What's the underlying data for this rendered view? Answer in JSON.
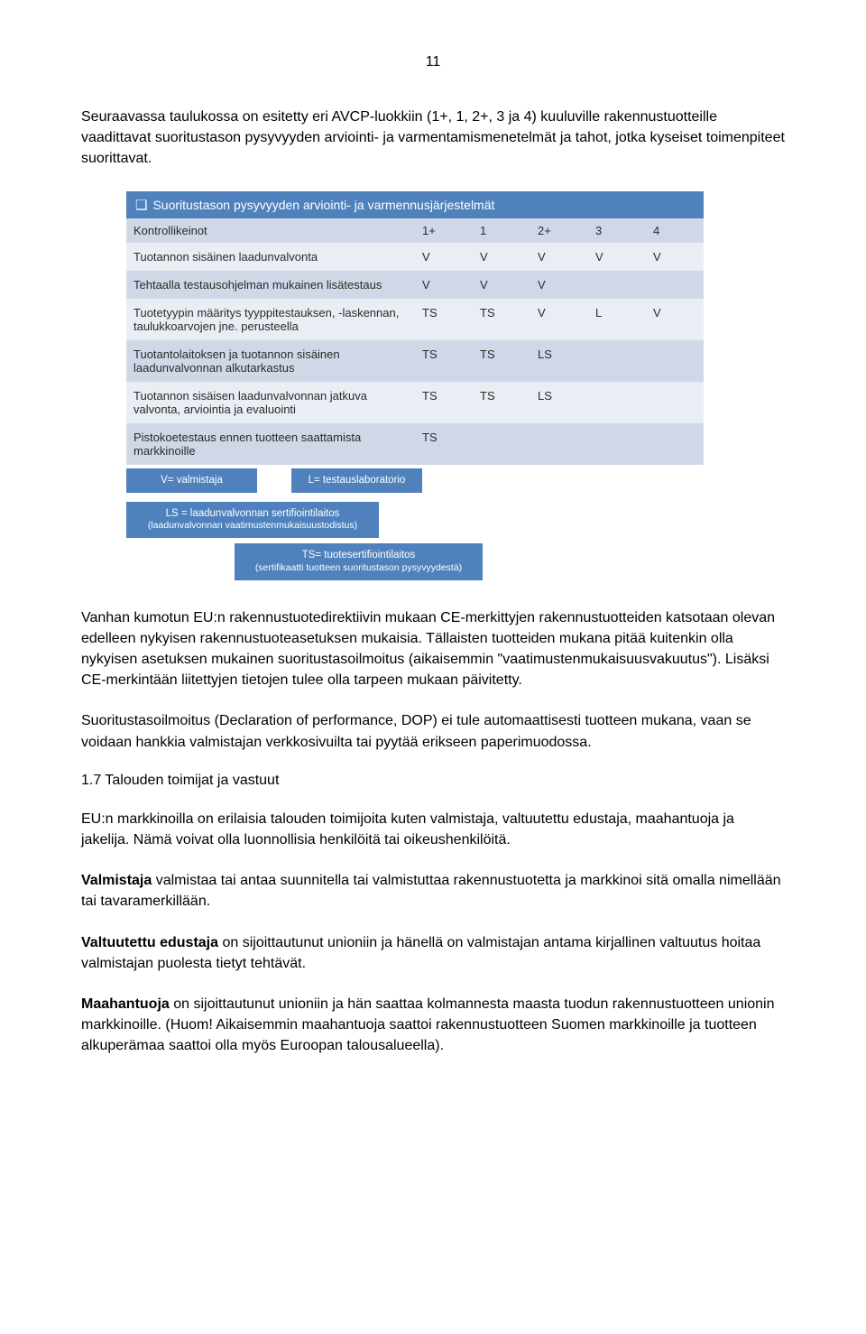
{
  "page_number": "11",
  "paragraphs": {
    "intro": "Seuraavassa taulukossa on esitetty eri AVCP-luokkiin (1+, 1, 2+, 3 ja 4) kuuluville rakennustuotteille vaadittavat suoritustason pysyvyyden arviointi- ja varmentamismenetelmät ja tahot, jotka kyseiset toimenpiteet suorittavat.",
    "p2": "Vanhan kumotun EU:n rakennustuotedirektiivin mukaan CE-merkittyjen rakennustuotteiden katsotaan olevan edelleen nykyisen rakennustuoteasetuksen mukaisia. Tällaisten tuotteiden mukana pitää kuitenkin olla nykyisen asetuksen mukainen suoritustasoilmoitus (aikaisemmin \"vaatimustenmukaisuusvakuutus\"). Lisäksi CE-merkintään liitettyjen tietojen tulee olla tarpeen mukaan päivitetty.",
    "p3": "Suoritustasoilmoitus (Declaration of performance, DOP) ei tule automaattisesti tuotteen mukana, vaan se voidaan hankkia valmistajan verkkosivuilta tai pyytää erikseen paperimuodossa.",
    "heading17": "1.7 Talouden toimijat ja vastuut",
    "p4": "EU:n markkinoilla on erilaisia talouden toimijoita kuten valmistaja, valtuutettu edustaja, maahantuoja ja jakelija. Nämä voivat olla luonnollisia henkilöitä tai oikeushenkilöitä.",
    "p5a": "Valmistaja",
    "p5b": " valmistaa tai antaa suunnitella tai valmistuttaa rakennustuotetta ja markkinoi sitä omalla nimellään tai tavaramerkillään.",
    "p6a": "Valtuutettu edustaja",
    "p6b": " on sijoittautunut unioniin ja hänellä on valmistajan antama kirjallinen valtuutus hoitaa valmistajan puolesta tietyt tehtävät.",
    "p7a": "Maahantuoja",
    "p7b": " on sijoittautunut unioniin ja hän saattaa kolmannesta maasta tuodun rakennustuotteen unionin markkinoille. (Huom! Aikaisemmin maahantuoja saattoi rakennustuotteen Suomen markkinoille ja tuotteen alkuperämaa saattoi olla myös Euroopan talousalueella)."
  },
  "table": {
    "title": "Suoritustason pysyvyyden arviointi- ja varmennusjärjestelmät",
    "header": [
      "Kontrollikeinot",
      "1+",
      "1",
      "2+",
      "3",
      "4"
    ],
    "rows": [
      {
        "label": "Tuotannon sisäinen laadunvalvonta",
        "cells": [
          "V",
          "V",
          "V",
          "V",
          "V"
        ]
      },
      {
        "label": "Tehtaalla testausohjelman mukainen lisätestaus",
        "cells": [
          "V",
          "V",
          "V",
          "",
          ""
        ]
      },
      {
        "label": "Tuotetyypin määritys tyyppitestauksen, -laskennan, taulukkoarvojen jne. perusteella",
        "cells": [
          "TS",
          "TS",
          "V",
          "L",
          "V"
        ]
      },
      {
        "label": "Tuotantolaitoksen ja tuotannon sisäinen laadunvalvonnan alkutarkastus",
        "cells": [
          "TS",
          "TS",
          "LS",
          "",
          ""
        ]
      },
      {
        "label": "Tuotannon sisäisen laadunvalvonnan jatkuva valvonta, arviointia ja evaluointi",
        "cells": [
          "TS",
          "TS",
          "LS",
          "",
          ""
        ]
      },
      {
        "label": "Pistokoetestaus ennen tuotteen saattamista markkinoille",
        "cells": [
          "TS",
          "",
          "",
          "",
          ""
        ]
      }
    ],
    "colors": {
      "title_bg": "#4f81bd",
      "header_bg": "#d0d8e8",
      "row_bg": "#e9edf4",
      "row_alt_bg": "#d0d8e8",
      "text": "#2a2a2a"
    }
  },
  "legend": {
    "v": "V= valmistaja",
    "l": "L= testauslaboratorio",
    "ls": "LS = laadunvalvonnan sertifiointilaitos",
    "ls_sub": "(laadunvalvonnan vaatimustenmukaisuustodistus)",
    "ts": "TS= tuotesertifiointilaitos",
    "ts_sub": "(sertifikaatti tuotteen suoritustason pysyvyydestä)"
  }
}
